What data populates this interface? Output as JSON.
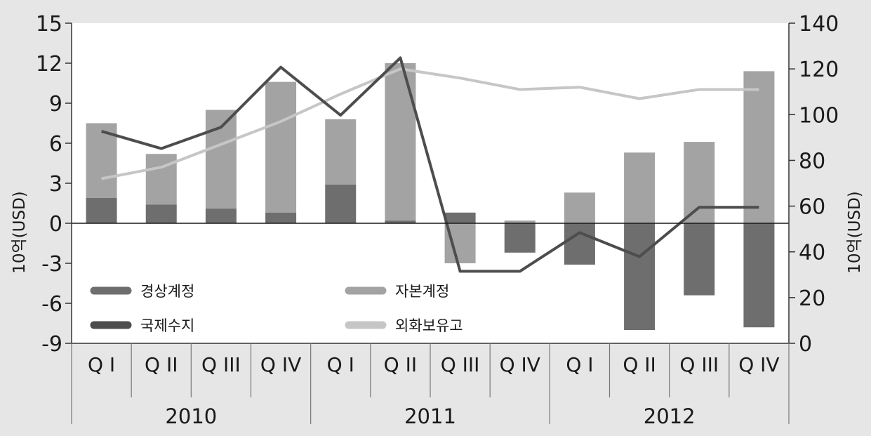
{
  "chart_data": {
    "type": "bar",
    "quarters": [
      "Q I",
      "Q II",
      "Q III",
      "Q IV",
      "Q I",
      "Q II",
      "Q III",
      "Q IV",
      "Q I",
      "Q II",
      "Q III",
      "Q IV"
    ],
    "years": [
      "2010",
      "2011",
      "2012"
    ],
    "ylabel_left": "10억(USD)",
    "ylabel_right": "10억(USD)",
    "ylim_left": [
      -9,
      15
    ],
    "yticks_left": [
      "15",
      "12",
      "9",
      "6",
      "3",
      "0",
      "-3",
      "-6",
      "-9"
    ],
    "ylim_right": [
      0,
      140
    ],
    "yticks_right": [
      "140",
      "120",
      "100",
      "80",
      "60",
      "40",
      "20",
      "0"
    ],
    "legend_placement": "lower-left",
    "grid": false,
    "series": [
      {
        "name": "경상계정",
        "kind": "bar",
        "axis": "left",
        "color": "#6e6e6e",
        "values": [
          1.9,
          1.4,
          1.1,
          0.8,
          2.9,
          0.2,
          0.8,
          -2.2,
          -3.1,
          -8.0,
          -5.4,
          -7.8
        ]
      },
      {
        "name": "자본계정",
        "kind": "bar",
        "axis": "left",
        "color": "#a3a3a3",
        "values": [
          5.6,
          3.8,
          7.4,
          9.8,
          4.9,
          11.8,
          -3.0,
          0.2,
          2.3,
          5.3,
          6.1,
          11.4
        ]
      },
      {
        "name": "국제수지",
        "kind": "line",
        "axis": "left",
        "color": "#4d4d4d",
        "values": [
          6.9,
          5.6,
          7.2,
          11.7,
          8.1,
          12.4,
          -3.6,
          -3.6,
          -0.7,
          -2.5,
          1.2,
          1.2
        ]
      },
      {
        "name": "외화보유고",
        "kind": "line",
        "axis": "right",
        "color": "#c6c6c6",
        "values": [
          72,
          77,
          87,
          97,
          109,
          120,
          116,
          111,
          112,
          107,
          111,
          111
        ]
      }
    ]
  }
}
